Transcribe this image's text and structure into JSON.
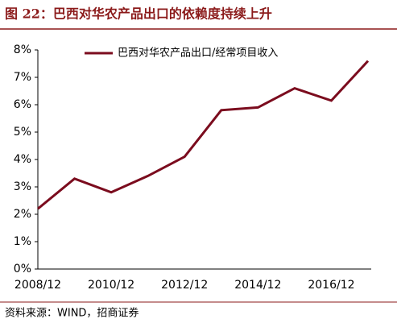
{
  "chart_data": {
    "type": "line",
    "title": "图 22：巴西对华农产品出口的依赖度持续上升",
    "source": "资料来源：WIND，招商证券",
    "categories": [
      "2008/12",
      null,
      "2010/12",
      null,
      "2012/12",
      null,
      "2014/12",
      null,
      "2016/12",
      null
    ],
    "series": [
      {
        "name": "巴西对华农产品出口/经常项目收入",
        "color": "#7b0c1e",
        "values": [
          2.2,
          3.3,
          2.8,
          3.4,
          4.1,
          5.8,
          5.9,
          6.6,
          6.15,
          7.6
        ]
      }
    ],
    "ylim": [
      0,
      8
    ],
    "yticks": [
      {
        "value": 0,
        "label": "0%"
      },
      {
        "value": 1,
        "label": "1%"
      },
      {
        "value": 2,
        "label": "2%"
      },
      {
        "value": 3,
        "label": "3%"
      },
      {
        "value": 4,
        "label": "4%"
      },
      {
        "value": 5,
        "label": "5%"
      },
      {
        "value": 6,
        "label": "6%"
      },
      {
        "value": 7,
        "label": "7%"
      },
      {
        "value": 8,
        "label": "8%"
      }
    ],
    "legend": "top"
  }
}
